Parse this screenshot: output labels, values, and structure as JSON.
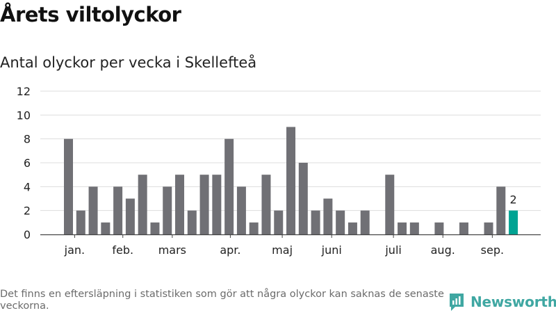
{
  "header": {
    "title": "Årets viltolyckor",
    "subtitle": "Antal olyckor per vecka i Skellefteå"
  },
  "footer": {
    "note": "Det finns en eftersläpning i statistiken som gör att några olyckor kan saknas de senaste veckorna.",
    "brand": "Newsworthy",
    "brand_icon": "newsworthy-logo-icon"
  },
  "colors": {
    "bar": "#707075",
    "highlight": "#00a393",
    "grid": "#dddddd",
    "axis": "#444444",
    "brand": "#3fa7a2"
  },
  "chart_data": {
    "type": "bar",
    "title": "Årets viltolyckor",
    "subtitle": "Antal olyckor per vecka i Skellefteå",
    "xlabel": "",
    "ylabel": "",
    "ylim": [
      0,
      12
    ],
    "yticks": [
      0,
      2,
      4,
      6,
      8,
      10,
      12
    ],
    "grid": true,
    "values": [
      8,
      2,
      4,
      1,
      4,
      3,
      5,
      1,
      4,
      5,
      2,
      5,
      5,
      8,
      4,
      1,
      5,
      2,
      9,
      6,
      2,
      3,
      2,
      1,
      2,
      0,
      5,
      1,
      1,
      0,
      1,
      0,
      1,
      0,
      1,
      4,
      2
    ],
    "highlight_index": 36,
    "highlight_label": "2",
    "month_labels": [
      {
        "label": "jan.",
        "bar_index": 0.5
      },
      {
        "label": "feb.",
        "bar_index": 4.4
      },
      {
        "label": "mars",
        "bar_index": 8.4
      },
      {
        "label": "apr.",
        "bar_index": 13.1
      },
      {
        "label": "maj",
        "bar_index": 17.3
      },
      {
        "label": "juni",
        "bar_index": 21.3
      },
      {
        "label": "juli",
        "bar_index": 26.3
      },
      {
        "label": "aug.",
        "bar_index": 30.3
      },
      {
        "label": "sep.",
        "bar_index": 34.3
      }
    ]
  }
}
